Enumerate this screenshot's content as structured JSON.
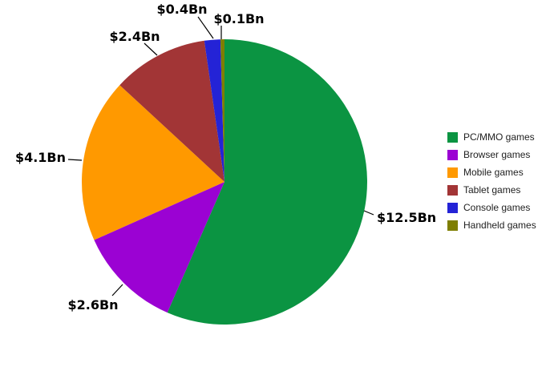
{
  "chart_data": {
    "type": "pie",
    "title": "",
    "categories": [
      "PC/MMO games",
      "Browser games",
      "Mobile games",
      "Tablet games",
      "Console games",
      "Handheld games"
    ],
    "values": [
      12.5,
      2.6,
      4.1,
      2.4,
      0.4,
      0.1
    ],
    "value_labels": [
      "$12.5Bn",
      "$2.6Bn",
      "$4.1Bn",
      "$2.4Bn",
      "$0.4Bn",
      "$0.1Bn"
    ],
    "colors": [
      "#0b9442",
      "#9b02d3",
      "#ff9900",
      "#a23536",
      "#2423d6",
      "#7e7e00"
    ],
    "start_angle_deg": 0,
    "direction": "clockwise",
    "legend": {
      "position": "right",
      "items": [
        "PC/MMO games",
        "Browser games",
        "Mobile games",
        "Tablet games",
        "Console games",
        "Handheld games"
      ]
    },
    "background_color": "#ffffff",
    "label_color": "#000000",
    "leader_line_color": "#000000"
  }
}
